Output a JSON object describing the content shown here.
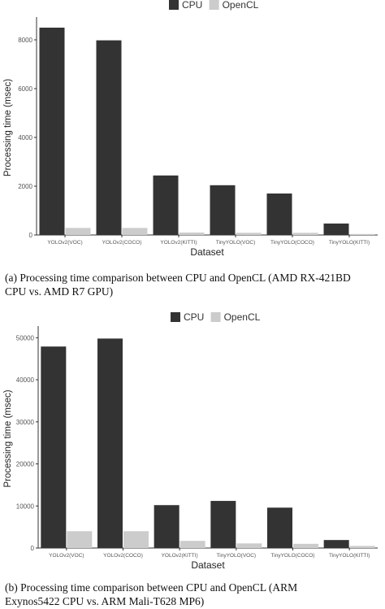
{
  "chart_data": [
    {
      "type": "bar",
      "caption": "(a)  Processing time comparison between CPU and OpenCL (AMD RX-421BD",
      "caption_line2": "CPU vs. AMD R7 GPU)",
      "xlabel": "Dataset",
      "ylabel": "Processing time (msec)",
      "ylim": [
        0,
        8800
      ],
      "yticks": [
        0,
        2000,
        4000,
        6000,
        8000
      ],
      "categories": [
        "YOLOv2(VOC)",
        "YOLOv2(COCO)",
        "YOLOv2(KITTI)",
        "TinyYOLO(VOC)",
        "TinyYOLO(COCO)",
        "TinyYOLO(KITTI)"
      ],
      "series": [
        {
          "name": "CPU",
          "color": "#333333",
          "values": [
            8500,
            7980,
            2440,
            2040,
            1700,
            470
          ]
        },
        {
          "name": "OpenCL",
          "color": "#cccccc",
          "values": [
            290,
            290,
            100,
            90,
            90,
            40
          ]
        }
      ],
      "legend": "top",
      "grid": false
    },
    {
      "type": "bar",
      "caption": "(b)    Processing time comparison between CPU and OpenCL (ARM",
      "caption_line2": "Exynos5422 CPU vs. ARM Mali-T628 MP6)",
      "xlabel": "Dataset",
      "ylabel": "Processing time (msec)",
      "ylim": [
        0,
        52000
      ],
      "yticks": [
        0,
        10000,
        20000,
        30000,
        40000,
        50000
      ],
      "categories": [
        "YOLOv2(VOC)",
        "YOLOv2(COCO)",
        "YOLOv2(KITTI)",
        "TinyYOLO(VOC)",
        "TinyYOLO(COCO)",
        "TinyYOLO(KITTI)"
      ],
      "series": [
        {
          "name": "CPU",
          "color": "#333333",
          "values": [
            47900,
            49800,
            10200,
            11200,
            9600,
            1900
          ]
        },
        {
          "name": "OpenCL",
          "color": "#cccccc",
          "values": [
            4000,
            4000,
            1700,
            1100,
            1000,
            500
          ]
        }
      ],
      "legend": "top",
      "grid": false
    }
  ]
}
